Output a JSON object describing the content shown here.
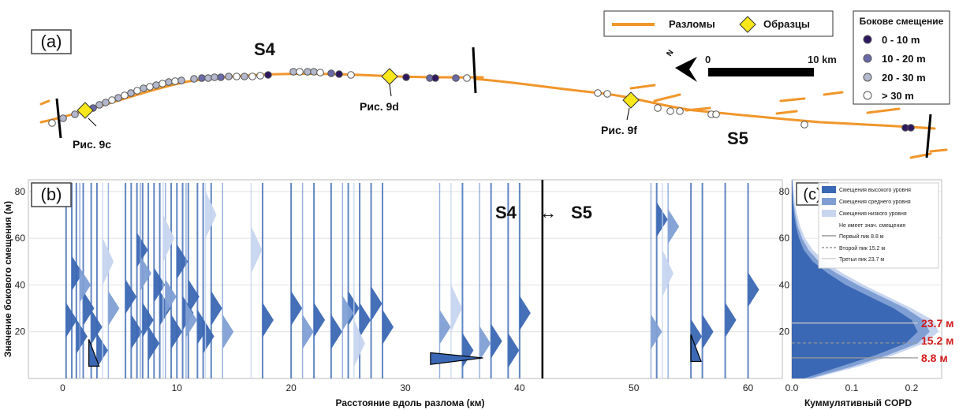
{
  "colors": {
    "fault": "#f0962a",
    "sample": "#f7e71b",
    "class1": "#2d1860",
    "class2": "#6a6aa8",
    "class3": "#b4b8cc",
    "class4": "#ffffff",
    "high": "#3b68b4",
    "mid": "#7f9fd4",
    "low": "#c7d5ef"
  },
  "panel_a": {
    "label": "(a)",
    "segment_labels": [
      "S4",
      "S5"
    ],
    "legend_main": {
      "faults": "Разломы",
      "samples": "Образцы"
    },
    "legend_offset": {
      "title": "Бокове смещение",
      "classes": [
        "0 - 10 m",
        "10 - 20 m",
        "20 - 30 m",
        "> 30 m"
      ]
    },
    "scale_start": "0",
    "scale_end": "10 km",
    "north": "N",
    "sample_labels": [
      "Рис. 9c",
      "Рис. 9d",
      "Рис. 9f"
    ]
  },
  "panel_b": {
    "label": "(b)",
    "segment_arrow": {
      "left": "S4",
      "arrow": "↔",
      "right": "S5"
    },
    "ylabel": "Значение бокового смещения (м)",
    "xlabel": "Расстояние вдоль разлома (км)"
  },
  "panel_c": {
    "label": "(c)",
    "xlabel": "Куммулятивный COPD",
    "legend": [
      "Смещения высокого уровня",
      "Смещения среднего уровня",
      "Смещения низкого уровня",
      "Не имеет знач. смещения",
      "Первый пик 8.8 м",
      "Второй пик 15.2 м",
      "Третьи пик 23.7 м"
    ],
    "peak_labels": [
      "23.7 м",
      "15.2 м",
      "8.8 м"
    ]
  },
  "chart_data": [
    {
      "type": "scatter",
      "title": "",
      "xlabel": "Расстояние вдоль разлома (км)",
      "ylabel": "Значение бокового смещения (м)",
      "xlim": [
        -3,
        63
      ],
      "ylim": [
        0,
        85
      ],
      "xticks": [
        0,
        10,
        20,
        30,
        40,
        50,
        60
      ],
      "yticks": [
        20,
        40,
        60,
        80
      ],
      "segment_boundary_km": 42,
      "series": [
        {
          "name": "Смещения высокого уровня",
          "points": [
            [
              0.3,
              25
            ],
            [
              0.8,
              45
            ],
            [
              1.2,
              18
            ],
            [
              1.8,
              30
            ],
            [
              2.5,
              22
            ],
            [
              3.0,
              12
            ],
            [
              5.5,
              35
            ],
            [
              6.0,
              20
            ],
            [
              6.5,
              55
            ],
            [
              7.0,
              25
            ],
            [
              7.5,
              15
            ],
            [
              8.0,
              40
            ],
            [
              8.5,
              30
            ],
            [
              9.5,
              20
            ],
            [
              10.0,
              50
            ],
            [
              10.5,
              28
            ],
            [
              11.0,
              35
            ],
            [
              11.8,
              22
            ],
            [
              12.3,
              18
            ],
            [
              13.0,
              30
            ],
            [
              17.5,
              25
            ],
            [
              20.0,
              30
            ],
            [
              22.0,
              25
            ],
            [
              23.5,
              20
            ],
            [
              25.0,
              30
            ],
            [
              26.0,
              25
            ],
            [
              27.0,
              32
            ],
            [
              28.0,
              22
            ],
            [
              35.0,
              12
            ],
            [
              37.5,
              16
            ],
            [
              39.0,
              12
            ],
            [
              40.0,
              28
            ],
            [
              52.0,
              68
            ],
            [
              55.0,
              18
            ],
            [
              56.0,
              20
            ],
            [
              58.0,
              25
            ],
            [
              60.0,
              38
            ]
          ]
        },
        {
          "name": "Смещения среднего уровня",
          "points": [
            [
              1.5,
              40
            ],
            [
              4.0,
              30
            ],
            [
              6.8,
              45
            ],
            [
              9.0,
              35
            ],
            [
              10.8,
              25
            ],
            [
              14.0,
              20
            ],
            [
              21.0,
              20
            ],
            [
              24.5,
              28
            ],
            [
              33.0,
              22
            ],
            [
              36.5,
              15
            ],
            [
              51.5,
              20
            ],
            [
              53.0,
              65
            ]
          ]
        },
        {
          "name": "Смещения низкого уровня",
          "points": [
            [
              3.5,
              50
            ],
            [
              8.8,
              60
            ],
            [
              12.5,
              70
            ],
            [
              16.5,
              55
            ],
            [
              25.5,
              15
            ],
            [
              34.0,
              30
            ],
            [
              52.5,
              45
            ]
          ]
        }
      ]
    },
    {
      "type": "area",
      "title": "",
      "xlabel": "Куммулятивный COPD",
      "xlim": [
        0,
        0.25
      ],
      "ylim": [
        0,
        85
      ],
      "xticks": [
        0.0,
        0.1,
        0.2
      ],
      "x": [
        0,
        5,
        10,
        15,
        20,
        25,
        30,
        35,
        40,
        45,
        50,
        55,
        60,
        65,
        70,
        75,
        80,
        85
      ],
      "series": [
        {
          "name": "Смещения высокого уровня",
          "values": [
            0.02,
            0.08,
            0.14,
            0.19,
            0.21,
            0.2,
            0.17,
            0.13,
            0.09,
            0.06,
            0.035,
            0.02,
            0.012,
            0.007,
            0.004,
            0.002,
            0.001,
            0.0
          ]
        },
        {
          "name": "Смещения среднего уровня",
          "values": [
            0.03,
            0.1,
            0.16,
            0.21,
            0.23,
            0.22,
            0.19,
            0.15,
            0.11,
            0.075,
            0.045,
            0.028,
            0.017,
            0.01,
            0.006,
            0.003,
            0.002,
            0.001
          ]
        },
        {
          "name": "Смещения низкого уровня",
          "values": [
            0.035,
            0.11,
            0.17,
            0.22,
            0.245,
            0.235,
            0.2,
            0.16,
            0.12,
            0.085,
            0.055,
            0.035,
            0.022,
            0.014,
            0.009,
            0.005,
            0.003,
            0.002
          ]
        }
      ],
      "peaks": [
        8.8,
        15.2,
        23.7
      ]
    }
  ]
}
